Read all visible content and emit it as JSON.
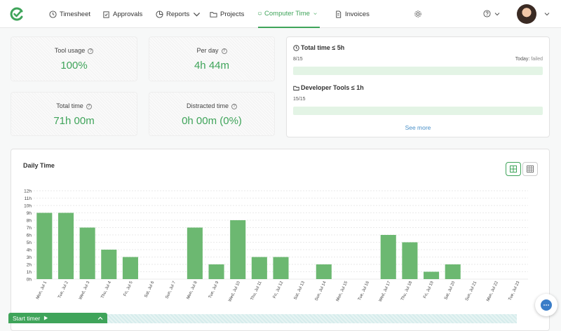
{
  "nav": {
    "items": [
      {
        "label": "Timesheet",
        "icon": "clock-icon"
      },
      {
        "label": "Approvals",
        "icon": "clipboard-check-icon"
      },
      {
        "label": "Reports",
        "icon": "pie-chart-icon"
      },
      {
        "label": "Projects",
        "icon": "folder-icon"
      },
      {
        "label": "Computer Time",
        "icon": "monitor-icon"
      },
      {
        "label": "Invoices",
        "icon": "document-icon"
      }
    ],
    "active": "Computer Time"
  },
  "stats": {
    "tool_usage": {
      "label": "Tool usage",
      "value": "100%"
    },
    "per_day": {
      "label": "Per day",
      "value": "4h 44m"
    },
    "total_time": {
      "label": "Total time",
      "value": "71h 00m"
    },
    "distracted_time": {
      "label": "Distracted time",
      "value": "0h 00m (0%)"
    }
  },
  "limits": {
    "total": {
      "title": "Total time ≤ 5h",
      "count": "8/15",
      "status_label": "Today:",
      "status_value": "failed"
    },
    "dev": {
      "title": "Developer Tools ≤ 1h",
      "count": "15/15"
    },
    "see_more": "See more"
  },
  "chart_title": "Daily Time",
  "footer": {
    "start_timer": "Start timer"
  },
  "colors": {
    "accent": "#3fa45a",
    "bar": "#6cb871",
    "link": "#4a90c8"
  },
  "chart_data": {
    "type": "bar",
    "categories": [
      "Mon, Jul 1",
      "Tue, Jul 2",
      "Wed, Jul 3",
      "Thu, Jul 4",
      "Fri, Jul 5",
      "Sat, Jul 6",
      "Sun, Jul 7",
      "Mon, Jul 8",
      "Tue, Jul 9",
      "Wed, Jul 10",
      "Thu, Jul 11",
      "Fri, Jul 12",
      "Sat, Jul 13",
      "Sun, Jul 14",
      "Mon, Jul 15",
      "Tue, Jul 16",
      "Wed, Jul 17",
      "Thu, Jul 18",
      "Fri, Jul 19",
      "Sat, Jul 20",
      "Sun, Jul 21",
      "Mon, Jul 22",
      "Tue, Jul 23"
    ],
    "values": [
      9,
      9,
      7,
      4,
      3,
      0,
      0,
      7,
      2,
      8,
      3,
      3,
      0,
      2,
      0,
      0,
      6,
      5,
      1,
      2,
      0,
      0,
      0
    ],
    "yticks": [
      "0h",
      "1h",
      "2h",
      "3h",
      "4h",
      "5h",
      "6h",
      "7h",
      "8h",
      "9h",
      "10h",
      "11h",
      "12h"
    ],
    "ylim": [
      0,
      12
    ],
    "unit": "h",
    "grid": true
  }
}
